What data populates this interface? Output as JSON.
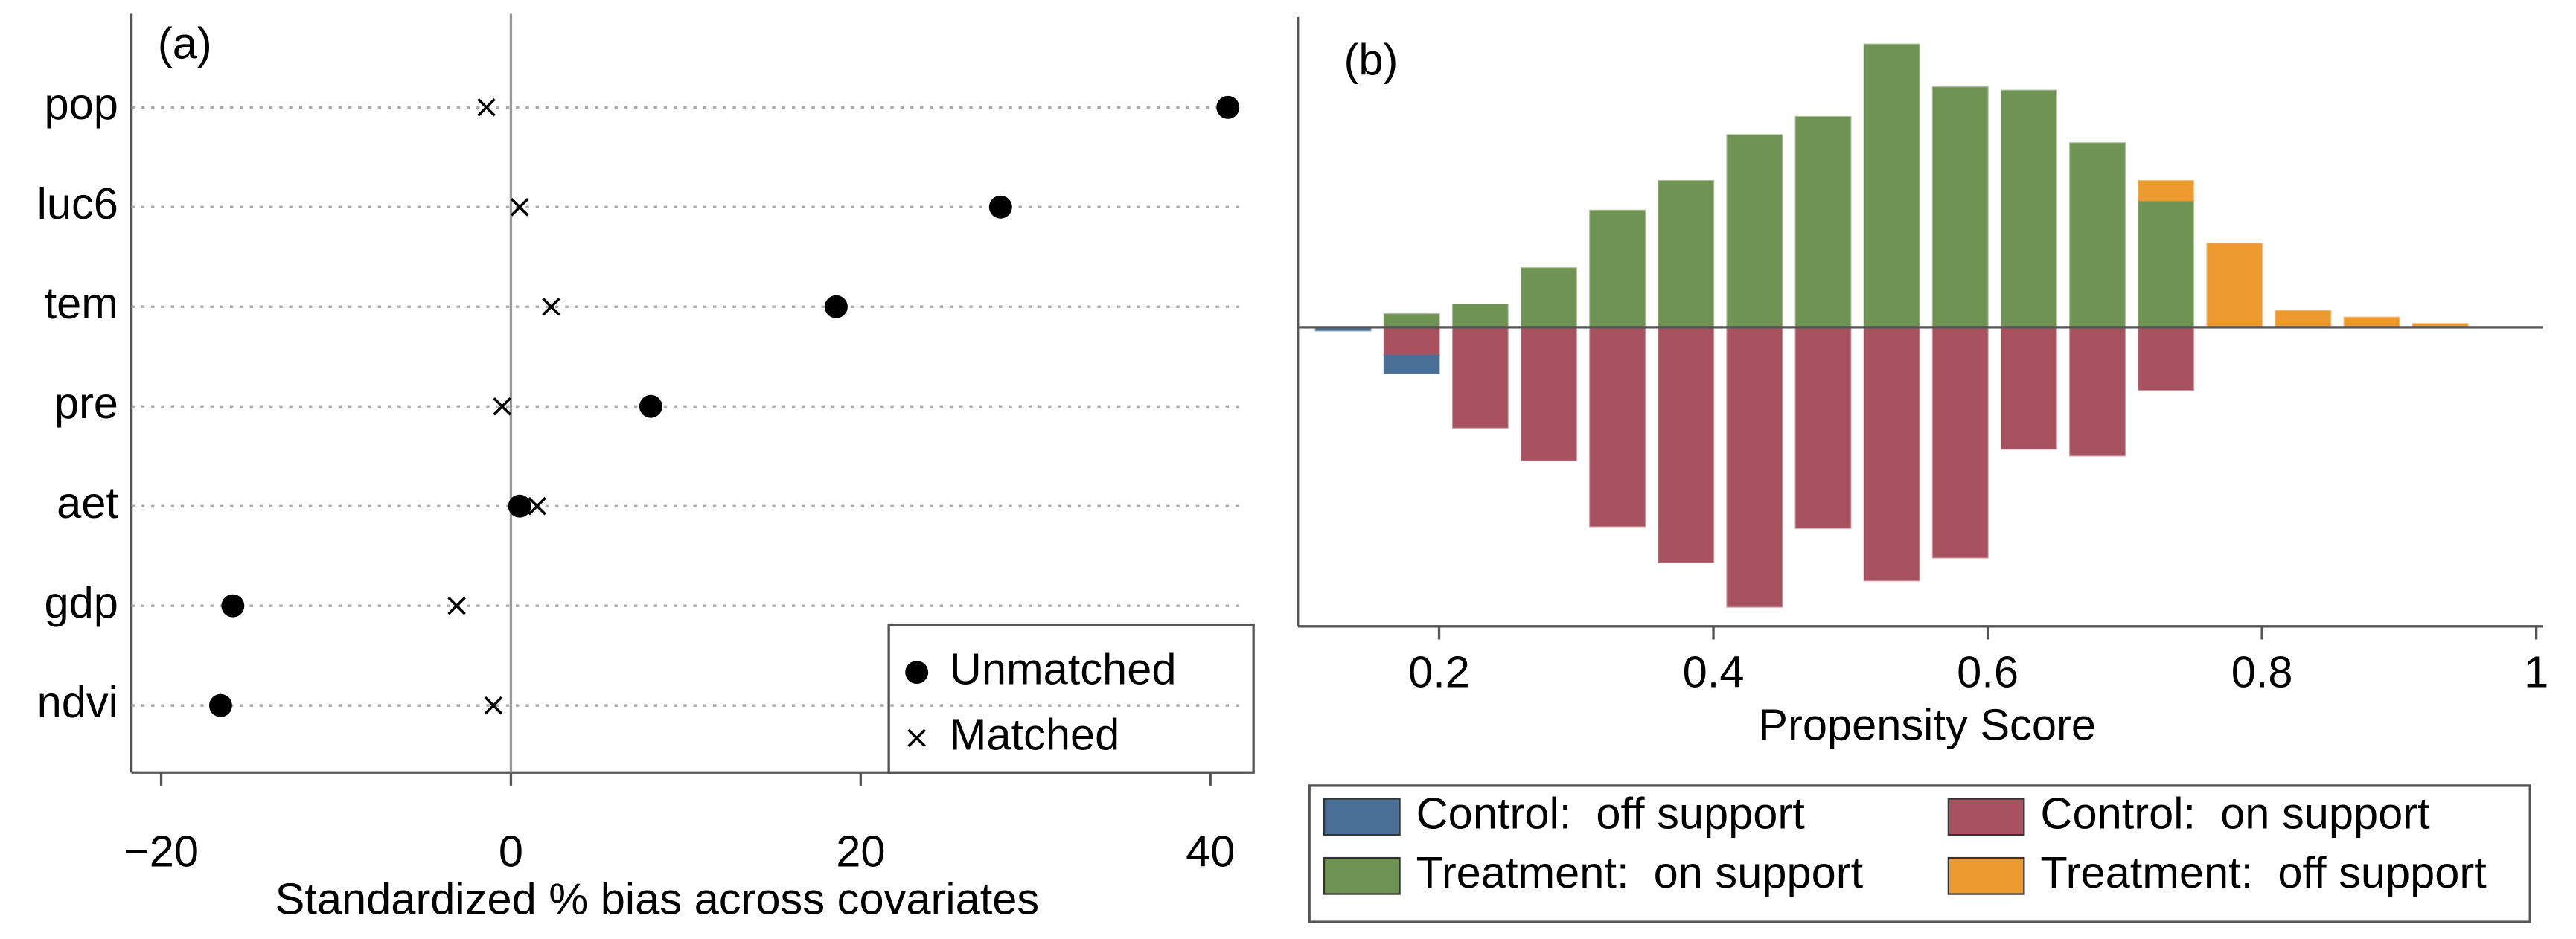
{
  "chart_data": [
    {
      "type": "scatter",
      "title": "(a)",
      "xlabel": "Standardized % bias across covariates",
      "categories": [
        "pop",
        "luc6",
        "tem",
        "pre",
        "aet",
        "gdp",
        "ndvi"
      ],
      "series": [
        {
          "name": "Unmatched",
          "color": "#000000",
          "marker": "circle",
          "values": [
            41.0,
            28.0,
            18.6,
            8.0,
            0.5,
            -15.9,
            -16.6
          ]
        },
        {
          "name": "Matched",
          "color": "#000000",
          "marker": "x",
          "values": [
            -1.4,
            0.5,
            2.3,
            -0.5,
            1.5,
            -3.1,
            -1.0
          ]
        }
      ],
      "xlim": [
        -21.7,
        41.9
      ],
      "xticks": [
        {
          "value": -20,
          "label": "−20"
        },
        0,
        20,
        40
      ],
      "legend": "lower right"
    },
    {
      "type": "histogram",
      "title": "(b)",
      "xlabel": "Propensity Score",
      "bins": [
        0.105,
        0.155,
        0.205,
        0.255,
        0.305,
        0.355,
        0.405,
        0.455,
        0.505,
        0.555,
        0.605,
        0.655,
        0.705,
        0.755,
        0.805,
        0.855,
        0.905,
        0.955
      ],
      "series": [
        {
          "name": "Control:  off support",
          "color": "#4a6f96",
          "values": [
            -0.12,
            -0.65,
            null,
            null,
            null,
            null,
            null,
            null,
            null,
            null,
            null,
            null,
            null,
            null,
            null,
            null,
            null
          ]
        },
        {
          "name": "Treatment:  on support",
          "color": "#6f9352",
          "values": [
            null,
            0.47,
            0.82,
            2.12,
            4.18,
            5.24,
            6.88,
            7.53,
            10.12,
            8.59,
            8.47,
            6.59,
            4.53,
            null,
            null,
            null,
            null
          ]
        },
        {
          "name": "Control:  on support",
          "color": "#a8525f",
          "values": [
            null,
            -1.0,
            -3.59,
            -4.76,
            -7.12,
            -8.41,
            -10.0,
            -7.18,
            -9.06,
            -8.24,
            -4.35,
            -4.59,
            -2.24,
            null,
            null,
            null,
            null
          ]
        },
        {
          "name": "Treatment:  off support",
          "color": "#ec9a2f",
          "values": [
            null,
            null,
            null,
            null,
            null,
            null,
            null,
            null,
            null,
            null,
            null,
            null,
            0.71,
            3.0,
            0.59,
            0.35,
            0.12
          ]
        }
      ],
      "xlim": [
        0.097,
        1.005
      ],
      "ylim": [
        -10.7,
        11.1
      ],
      "xticks": [
        0.2,
        0.4,
        0.6,
        0.8,
        1
      ],
      "legend": "bottom"
    }
  ]
}
